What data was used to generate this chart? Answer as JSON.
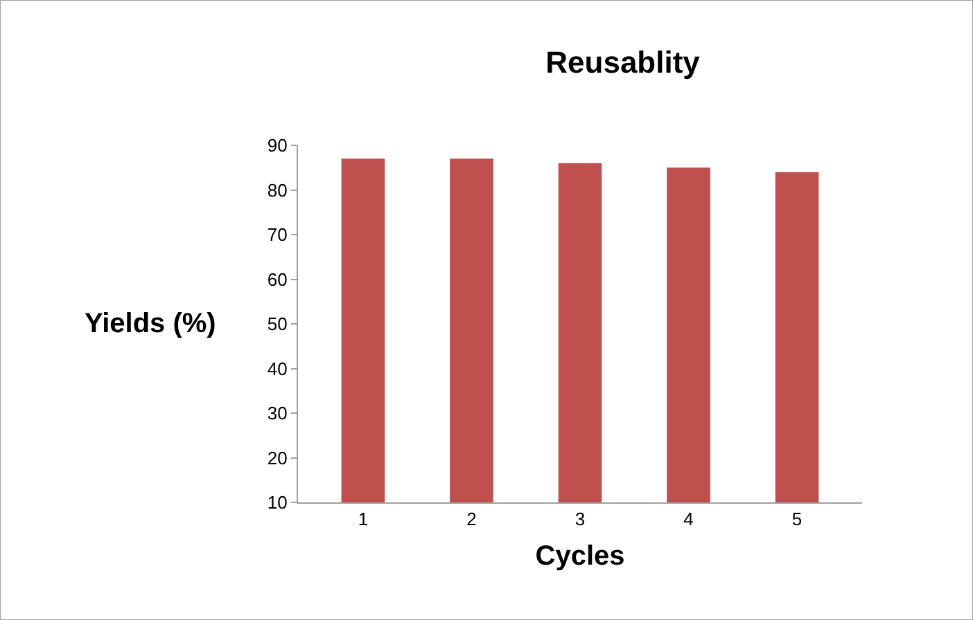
{
  "chart_data": {
    "type": "bar",
    "title": "Reusablity",
    "xlabel": "Cycles",
    "ylabel": "Yields (%)",
    "categories": [
      "1",
      "2",
      "3",
      "4",
      "5"
    ],
    "values": [
      87,
      87,
      86,
      85,
      84
    ],
    "color": "#c0504d",
    "ylim": [
      10,
      90
    ],
    "yticks": [
      10,
      20,
      30,
      40,
      50,
      60,
      70,
      80,
      90
    ],
    "grid": false,
    "legend": false
  }
}
